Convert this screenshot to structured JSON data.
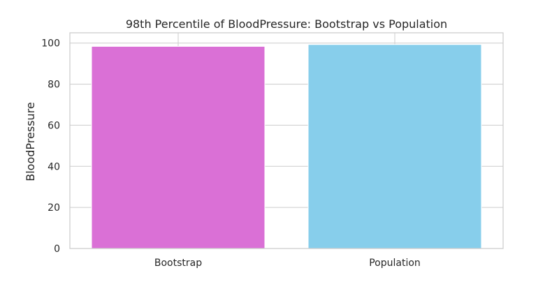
{
  "chart_data": {
    "type": "bar",
    "title": "98th Percentile of BloodPressure: Bootstrap vs Population",
    "xlabel": "",
    "ylabel": "BloodPressure",
    "categories": [
      "Bootstrap",
      "Population"
    ],
    "values": [
      98.4,
      99.3
    ],
    "bar_colors": [
      "#da70d6",
      "#87ceeb"
    ],
    "ylim": [
      0,
      105
    ],
    "yticks": [
      0,
      20,
      40,
      60,
      80,
      100
    ],
    "grid": true,
    "legend": "none"
  }
}
